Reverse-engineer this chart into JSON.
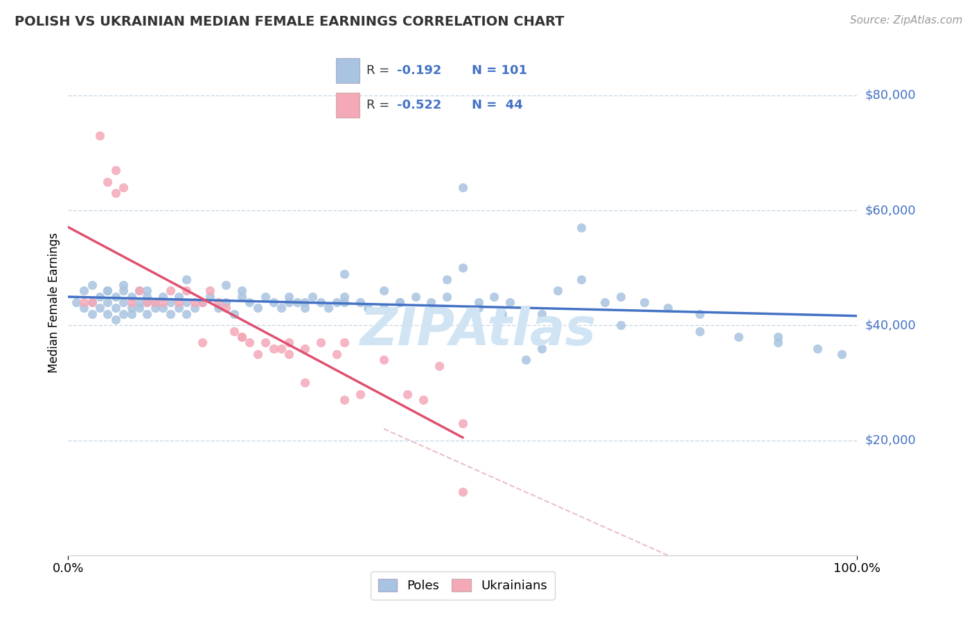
{
  "title": "POLISH VS UKRAINIAN MEDIAN FEMALE EARNINGS CORRELATION CHART",
  "source_text": "Source: ZipAtlas.com",
  "ylabel": "Median Female Earnings",
  "xlim": [
    0,
    100
  ],
  "ylim": [
    0,
    88000
  ],
  "color_poles": "#a8c4e0",
  "color_ukrainians": "#f4a8b8",
  "color_trend_poles": "#4472c4",
  "color_trend_ukr": "#e05070",
  "color_r_value": "#4472c4",
  "color_ytick": "#4472c4",
  "color_grid": "#c8d8e8",
  "color_refline": "#e8c0c8",
  "watermark": "ZIPAtlas",
  "watermark_color": "#d0e4f4",
  "poles_x": [
    1,
    2,
    2,
    3,
    3,
    4,
    4,
    5,
    5,
    5,
    6,
    6,
    6,
    7,
    7,
    7,
    8,
    8,
    8,
    9,
    9,
    9,
    10,
    10,
    10,
    11,
    11,
    12,
    12,
    13,
    13,
    14,
    14,
    15,
    15,
    16,
    17,
    18,
    19,
    20,
    21,
    22,
    23,
    24,
    25,
    26,
    27,
    28,
    29,
    30,
    31,
    32,
    33,
    34,
    35,
    37,
    38,
    40,
    42,
    44,
    46,
    48,
    50,
    52,
    54,
    56,
    58,
    60,
    62,
    65,
    68,
    70,
    73,
    76,
    80,
    85,
    90,
    95,
    98,
    50,
    35,
    48,
    20,
    15,
    10,
    7,
    5,
    3,
    22,
    28,
    35,
    42,
    52,
    60,
    70,
    80,
    90,
    30,
    40,
    55,
    65
  ],
  "poles_y": [
    44000,
    46000,
    43000,
    44000,
    42000,
    45000,
    43000,
    44000,
    46000,
    42000,
    43000,
    45000,
    41000,
    44000,
    46000,
    42000,
    43000,
    45000,
    42000,
    44000,
    43000,
    46000,
    44000,
    42000,
    45000,
    43000,
    44000,
    43000,
    45000,
    44000,
    42000,
    45000,
    43000,
    44000,
    42000,
    43000,
    44000,
    45000,
    43000,
    44000,
    42000,
    45000,
    44000,
    43000,
    45000,
    44000,
    43000,
    45000,
    44000,
    43000,
    45000,
    44000,
    43000,
    44000,
    45000,
    44000,
    43000,
    46000,
    44000,
    45000,
    44000,
    45000,
    64000,
    44000,
    45000,
    44000,
    34000,
    36000,
    46000,
    48000,
    44000,
    45000,
    44000,
    43000,
    42000,
    38000,
    37000,
    36000,
    35000,
    50000,
    49000,
    48000,
    47000,
    48000,
    46000,
    47000,
    46000,
    47000,
    46000,
    44000,
    44000,
    44000,
    43000,
    42000,
    40000,
    39000,
    38000,
    44000,
    43000,
    42000,
    57000
  ],
  "ukr_x": [
    2,
    3,
    4,
    5,
    6,
    6,
    7,
    8,
    9,
    10,
    11,
    12,
    13,
    14,
    15,
    16,
    17,
    18,
    19,
    20,
    21,
    22,
    23,
    24,
    25,
    26,
    27,
    28,
    30,
    32,
    34,
    35,
    37,
    40,
    43,
    45,
    47,
    50,
    28,
    35,
    22,
    17,
    30,
    50
  ],
  "ukr_y": [
    44000,
    44000,
    73000,
    65000,
    63000,
    67000,
    64000,
    44000,
    46000,
    44000,
    44000,
    44000,
    46000,
    44000,
    46000,
    44000,
    44000,
    46000,
    44000,
    43000,
    39000,
    38000,
    37000,
    35000,
    37000,
    36000,
    36000,
    35000,
    30000,
    37000,
    35000,
    27000,
    28000,
    34000,
    28000,
    27000,
    33000,
    23000,
    37000,
    37000,
    38000,
    37000,
    36000,
    11000
  ],
  "ref_line_x": [
    40,
    76
  ],
  "ref_line_y": [
    22000,
    0
  ],
  "ytick_vals": [
    20000,
    40000,
    60000,
    80000
  ],
  "ytick_labels": [
    "$20,000",
    "$40,000",
    "$60,000",
    "$80,000"
  ]
}
